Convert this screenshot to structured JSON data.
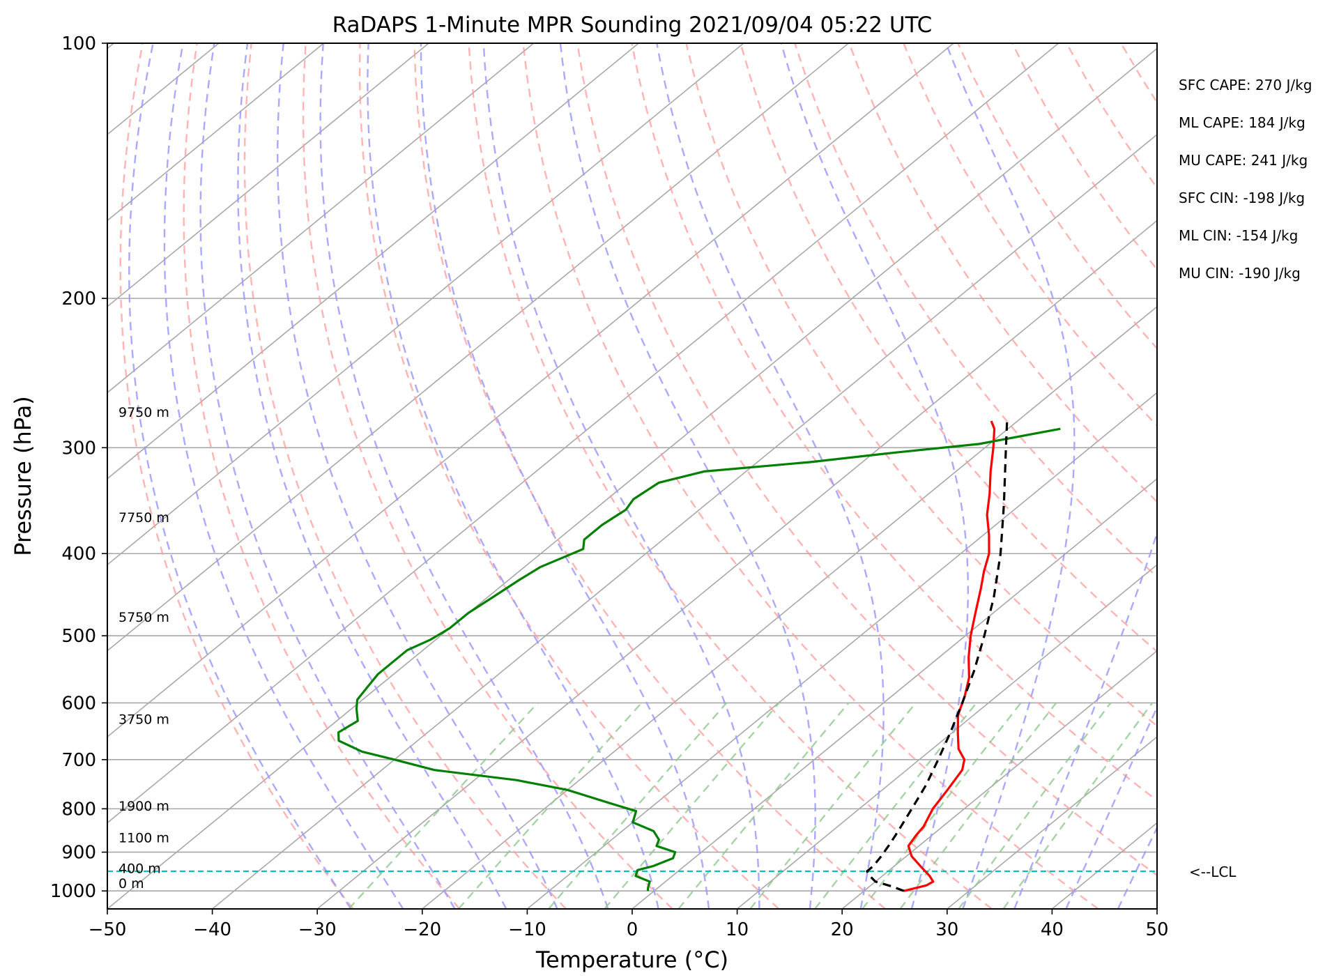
{
  "chart_data": {
    "type": "skew-t",
    "title": "RaDAPS 1-Minute MPR Sounding 2021/09/04 05:22 UTC",
    "xlabel": "Temperature (°C)",
    "ylabel": "Pressure (hPa)",
    "xlim": [
      -50,
      50
    ],
    "ylim": [
      1050,
      100
    ],
    "log_y": true,
    "x_ticks": [
      "−50",
      "−40",
      "−30",
      "−20",
      "−10",
      "0",
      "10",
      "20",
      "30",
      "40",
      "50"
    ],
    "y_ticks": [
      "100",
      "200",
      "300",
      "400",
      "500",
      "600",
      "700",
      "800",
      "900",
      "1000"
    ],
    "grid": true,
    "temperature": {
      "color": "#ff0000",
      "points": [
        [
          1000,
          23.8
        ],
        [
          985,
          25.3
        ],
        [
          975,
          25.5
        ],
        [
          960,
          24.5
        ],
        [
          935,
          22.5
        ],
        [
          910,
          20.5
        ],
        [
          885,
          19.0
        ],
        [
          860,
          18.5
        ],
        [
          840,
          18.2
        ],
        [
          800,
          17.0
        ],
        [
          760,
          16.2
        ],
        [
          720,
          15.3
        ],
        [
          700,
          14.3
        ],
        [
          680,
          12.5
        ],
        [
          650,
          10.5
        ],
        [
          620,
          8.5
        ],
        [
          590,
          7.0
        ],
        [
          560,
          5.2
        ],
        [
          530,
          2.8
        ],
        [
          500,
          0.5
        ],
        [
          470,
          -1.7
        ],
        [
          440,
          -4.0
        ],
        [
          420,
          -5.7
        ],
        [
          400,
          -7.3
        ],
        [
          380,
          -9.5
        ],
        [
          360,
          -12.0
        ],
        [
          340,
          -14.2
        ],
        [
          320,
          -16.7
        ],
        [
          300,
          -19.2
        ],
        [
          285,
          -21.3
        ],
        [
          279,
          -22.5
        ]
      ]
    },
    "dewpoint": {
      "color": "#008000",
      "points": [
        [
          1000,
          -0.6
        ],
        [
          990,
          -1.0
        ],
        [
          975,
          -1.5
        ],
        [
          960,
          -3.5
        ],
        [
          945,
          -4.0
        ],
        [
          935,
          -3.0
        ],
        [
          915,
          -2.0
        ],
        [
          900,
          -2.5
        ],
        [
          885,
          -5.0
        ],
        [
          870,
          -5.5
        ],
        [
          850,
          -7.0
        ],
        [
          830,
          -10.0
        ],
        [
          805,
          -11.0
        ],
        [
          790,
          -14.0
        ],
        [
          760,
          -20.0
        ],
        [
          740,
          -26.0
        ],
        [
          720,
          -35.0
        ],
        [
          700,
          -40.0
        ],
        [
          685,
          -44.0
        ],
        [
          665,
          -47.5
        ],
        [
          650,
          -48.5
        ],
        [
          630,
          -48.0
        ],
        [
          610,
          -49.5
        ],
        [
          595,
          -50.5
        ],
        [
          575,
          -51.0
        ],
        [
          555,
          -51.5
        ],
        [
          535,
          -51.5
        ],
        [
          520,
          -51.5
        ],
        [
          505,
          -50.5
        ],
        [
          490,
          -50.0
        ],
        [
          470,
          -50.0
        ],
        [
          450,
          -49.5
        ],
        [
          430,
          -49.0
        ],
        [
          415,
          -48.5
        ],
        [
          405,
          -47.5
        ],
        [
          395,
          -46.5
        ],
        [
          385,
          -47.5
        ],
        [
          370,
          -47.5
        ],
        [
          355,
          -47.0
        ],
        [
          345,
          -47.5
        ],
        [
          330,
          -47.0
        ],
        [
          320,
          -44.0
        ],
        [
          312,
          -35.0
        ],
        [
          304,
          -28.0
        ],
        [
          297,
          -21.0
        ],
        [
          285,
          -15.0
        ]
      ]
    },
    "parcel": {
      "color": "#000000",
      "points": [
        [
          1000,
          23.8
        ],
        [
          987,
          22.0
        ],
        [
          975,
          20.0
        ],
        [
          960,
          18.8
        ],
        [
          948,
          18.0
        ],
        [
          935,
          18.0
        ],
        [
          910,
          17.6
        ],
        [
          880,
          17.0
        ],
        [
          850,
          16.3
        ],
        [
          800,
          15.0
        ],
        [
          750,
          13.6
        ],
        [
          700,
          11.8
        ],
        [
          650,
          9.8
        ],
        [
          600,
          7.5
        ],
        [
          550,
          4.9
        ],
        [
          500,
          1.8
        ],
        [
          450,
          -1.8
        ],
        [
          400,
          -6.2
        ],
        [
          350,
          -11.6
        ],
        [
          300,
          -18.0
        ],
        [
          279,
          -21.0
        ]
      ]
    },
    "lcl": {
      "pressure": 948,
      "label": "<--LCL",
      "color": "#00bfbf"
    },
    "height_labels": [
      {
        "pressure": 1000,
        "text": "0 m"
      },
      {
        "pressure": 960,
        "text": "400 m"
      },
      {
        "pressure": 883,
        "text": "1100 m"
      },
      {
        "pressure": 810,
        "text": "1900 m"
      },
      {
        "pressure": 640,
        "text": "3750 m"
      },
      {
        "pressure": 485,
        "text": "5750 m"
      },
      {
        "pressure": 370,
        "text": "7750 m"
      },
      {
        "pressure": 278,
        "text": "9750 m"
      }
    ],
    "stats": [
      "SFC CAPE: 270 J/kg",
      "ML CAPE: 184 J/kg",
      "MU CAPE: 241 J/kg",
      "SFC CIN: -198 J/kg",
      "ML CIN: -154 J/kg",
      "MU CIN: -190 J/kg"
    ],
    "colors": {
      "isotherm": "#a8a8a8",
      "dry_adiabat": "#ff9a9a",
      "moist_adiabat": "#9a9aff",
      "mixing_ratio": "#90c890"
    }
  }
}
